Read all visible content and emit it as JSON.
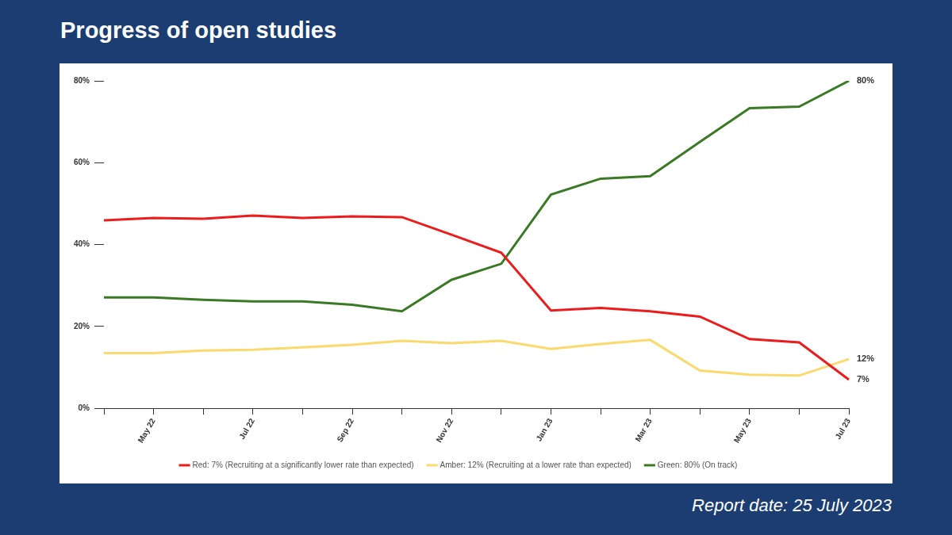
{
  "chart_data": {
    "type": "line",
    "title": "Progress of open studies",
    "footnote": "Report date: 25 July 2023",
    "categories": [
      null,
      "May 22",
      null,
      "Jul 22",
      null,
      "Sep 22",
      null,
      "Nov 22",
      null,
      "Jan 23",
      null,
      "Mar 23",
      null,
      "May 23",
      null,
      "Jul 23"
    ],
    "series": [
      {
        "name": "Red: 7% (Recruiting at a significantly lower rate than expected)",
        "color": "#ec1c1c",
        "values": [
          45.9,
          46.5,
          46.3,
          47.1,
          46.5,
          46.9,
          46.7,
          42.4,
          38.0,
          23.9,
          24.5,
          23.7,
          22.4,
          16.9,
          16.1,
          7
        ],
        "value_labels": [
          null,
          null,
          null,
          null,
          null,
          null,
          null,
          null,
          null,
          null,
          null,
          null,
          null,
          null,
          null,
          "7%"
        ]
      },
      {
        "name": "Amber: 12% (Recruiting at a lower rate than expected)",
        "color": "#fbd96c",
        "values": [
          13.5,
          13.5,
          14.1,
          14.3,
          14.9,
          15.5,
          16.5,
          15.9,
          16.5,
          14.5,
          15.7,
          16.7,
          9.2,
          8.2,
          8.0,
          12
        ],
        "value_labels": [
          null,
          null,
          null,
          null,
          null,
          null,
          null,
          null,
          null,
          null,
          null,
          null,
          null,
          null,
          null,
          "12%"
        ]
      },
      {
        "name": "Green: 80% (On track)",
        "color": "#3b7a24",
        "values": [
          27.1,
          27.1,
          26.5,
          26.1,
          26.1,
          25.3,
          23.7,
          31.4,
          35.3,
          52.2,
          56.1,
          56.7,
          65.1,
          73.3,
          73.7,
          80
        ],
        "value_labels": [
          null,
          null,
          null,
          null,
          null,
          null,
          null,
          null,
          null,
          null,
          null,
          null,
          null,
          null,
          null,
          "80%"
        ]
      }
    ],
    "ylim": [
      0,
      80
    ],
    "yticks": [
      {
        "value": 0,
        "label": "0%"
      },
      {
        "value": 20,
        "label": "20%"
      },
      {
        "value": 40,
        "label": "40%"
      },
      {
        "value": 60,
        "label": "60%"
      },
      {
        "value": 80,
        "label": "80%"
      }
    ],
    "grid": false,
    "legend": "bottom"
  }
}
